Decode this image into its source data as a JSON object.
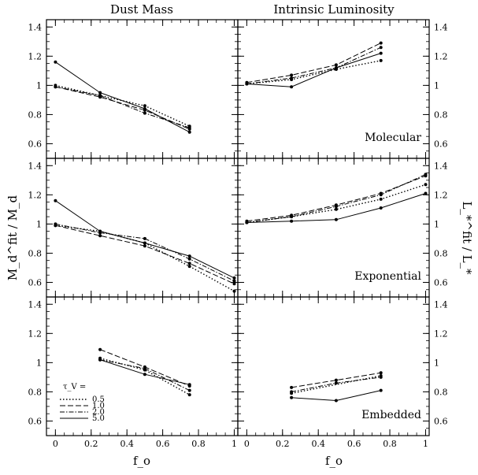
{
  "figure": {
    "col_titles": [
      "Dust Mass",
      "Intrinsic Luminosity"
    ],
    "left_ylabel": "M_d^fit / M_d",
    "right_ylabel": "L_*^fit / L_*",
    "xlabel": "f_o",
    "legend_title": "τ_V =",
    "legend_labels": [
      "0.5",
      "1.0",
      "2.0",
      "5.0"
    ],
    "x_tick_labels": [
      "0",
      "0.2",
      "0.4",
      "0.6",
      "0.8",
      "1"
    ],
    "y_tick_labels": [
      "0.6",
      "0.8",
      "1",
      "1.2",
      "1.4"
    ]
  },
  "chart_data": [
    {
      "type": "line",
      "row": 0,
      "col": 0,
      "panel_label": "",
      "xlim": [
        -0.05,
        1.02
      ],
      "ylim": [
        0.5,
        1.45
      ],
      "series": [
        {
          "name": "0.5",
          "x": [
            0,
            0.25,
            0.5,
            0.75
          ],
          "values": [
            1.0,
            0.93,
            0.86,
            0.72
          ]
        },
        {
          "name": "1.0",
          "x": [
            0,
            0.25,
            0.5,
            0.75
          ],
          "values": [
            0.99,
            0.92,
            0.83,
            0.7
          ]
        },
        {
          "name": "2.0",
          "x": [
            0,
            0.25,
            0.5,
            0.75
          ],
          "values": [
            0.99,
            0.93,
            0.81,
            0.71
          ]
        },
        {
          "name": "5.0",
          "x": [
            0,
            0.25,
            0.5,
            0.75
          ],
          "values": [
            1.16,
            0.95,
            0.84,
            0.68
          ]
        }
      ]
    },
    {
      "type": "line",
      "row": 0,
      "col": 1,
      "panel_label": "Molecular",
      "xlim": [
        -0.05,
        1.02
      ],
      "ylim": [
        0.5,
        1.45
      ],
      "series": [
        {
          "name": "0.5",
          "x": [
            0,
            0.25,
            0.5,
            0.75
          ],
          "values": [
            1.01,
            1.04,
            1.11,
            1.17
          ]
        },
        {
          "name": "1.0",
          "x": [
            0,
            0.25,
            0.5,
            0.75
          ],
          "values": [
            1.02,
            1.07,
            1.14,
            1.29
          ]
        },
        {
          "name": "2.0",
          "x": [
            0,
            0.25,
            0.5,
            0.75
          ],
          "values": [
            1.01,
            1.05,
            1.12,
            1.26
          ]
        },
        {
          "name": "5.0",
          "x": [
            0,
            0.25,
            0.5,
            0.75
          ],
          "values": [
            1.01,
            0.99,
            1.12,
            1.22
          ]
        }
      ]
    },
    {
      "type": "line",
      "row": 1,
      "col": 0,
      "panel_label": "",
      "xlim": [
        -0.05,
        1.02
      ],
      "ylim": [
        0.5,
        1.45
      ],
      "series": [
        {
          "name": "0.5",
          "x": [
            0,
            0.25,
            0.5,
            0.75,
            1.0
          ],
          "values": [
            0.99,
            0.95,
            0.87,
            0.71,
            0.54
          ]
        },
        {
          "name": "1.0",
          "x": [
            0,
            0.25,
            0.5,
            0.75,
            1.0
          ],
          "values": [
            0.99,
            0.92,
            0.85,
            0.73,
            0.59
          ]
        },
        {
          "name": "2.0",
          "x": [
            0,
            0.25,
            0.5,
            0.75,
            1.0
          ],
          "values": [
            1.0,
            0.94,
            0.9,
            0.76,
            0.61
          ]
        },
        {
          "name": "5.0",
          "x": [
            0,
            0.25,
            0.5,
            0.75,
            1.0
          ],
          "values": [
            1.16,
            0.95,
            0.87,
            0.78,
            0.63
          ]
        }
      ]
    },
    {
      "type": "line",
      "row": 1,
      "col": 1,
      "panel_label": "Exponential",
      "xlim": [
        -0.05,
        1.02
      ],
      "ylim": [
        0.5,
        1.45
      ],
      "series": [
        {
          "name": "0.5",
          "x": [
            0,
            0.25,
            0.5,
            0.75,
            1.0
          ],
          "values": [
            1.01,
            1.05,
            1.1,
            1.17,
            1.27
          ]
        },
        {
          "name": "1.0",
          "x": [
            0,
            0.25,
            0.5,
            0.75,
            1.0
          ],
          "values": [
            1.02,
            1.06,
            1.13,
            1.21,
            1.33
          ]
        },
        {
          "name": "2.0",
          "x": [
            0,
            0.25,
            0.5,
            0.75,
            1.0
          ],
          "values": [
            1.01,
            1.05,
            1.12,
            1.2,
            1.34
          ]
        },
        {
          "name": "5.0",
          "x": [
            0,
            0.25,
            0.5,
            0.75,
            1.0
          ],
          "values": [
            1.01,
            1.02,
            1.03,
            1.11,
            1.21
          ]
        }
      ]
    },
    {
      "type": "line",
      "row": 2,
      "col": 0,
      "panel_label": "",
      "xlim": [
        -0.05,
        1.02
      ],
      "ylim": [
        0.5,
        1.45
      ],
      "series": [
        {
          "name": "0.5",
          "x": [
            0.25,
            0.5,
            0.75
          ],
          "values": [
            1.03,
            0.95,
            0.78
          ]
        },
        {
          "name": "1.0",
          "x": [
            0.25,
            0.5,
            0.75
          ],
          "values": [
            1.09,
            0.97,
            0.84
          ]
        },
        {
          "name": "2.0",
          "x": [
            0.25,
            0.5,
            0.75
          ],
          "values": [
            1.02,
            0.96,
            0.81
          ]
        },
        {
          "name": "5.0",
          "x": [
            0.25,
            0.5,
            0.75
          ],
          "values": [
            1.02,
            0.92,
            0.85
          ]
        }
      ]
    },
    {
      "type": "line",
      "row": 2,
      "col": 1,
      "panel_label": "Embedded",
      "xlim": [
        -0.05,
        1.02
      ],
      "ylim": [
        0.5,
        1.45
      ],
      "series": [
        {
          "name": "0.5",
          "x": [
            0.25,
            0.75
          ],
          "values": [
            0.79,
            0.91
          ]
        },
        {
          "name": "1.0",
          "x": [
            0.25,
            0.5,
            0.75
          ],
          "values": [
            0.83,
            0.88,
            0.93
          ]
        },
        {
          "name": "2.0",
          "x": [
            0.25,
            0.5,
            0.75
          ],
          "values": [
            0.8,
            0.86,
            0.9
          ]
        },
        {
          "name": "5.0",
          "x": [
            0.25,
            0.5,
            0.75
          ],
          "values": [
            0.76,
            0.74,
            0.81
          ]
        }
      ]
    }
  ]
}
